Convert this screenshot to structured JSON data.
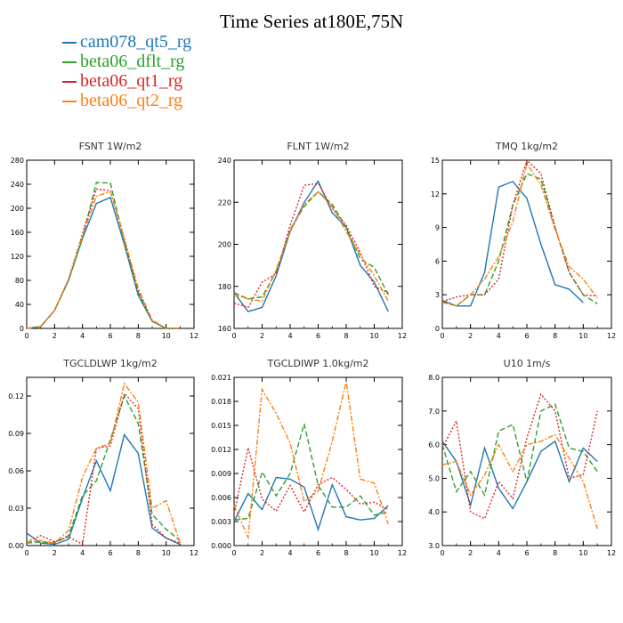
{
  "title": "Time Series at180E,75N",
  "legend": [
    {
      "label": "cam078_qt5_rg",
      "color": "#1f77b4"
    },
    {
      "label": "beta06_dflt_rg",
      "color": "#2ca02c"
    },
    {
      "label": "beta06_qt1_rg",
      "color": "#d62728"
    },
    {
      "label": "beta06_qt2_rg",
      "color": "#ff7f0e"
    }
  ],
  "chart_data": [
    {
      "type": "line",
      "title": "FSNT   1W/m2",
      "x": [
        0,
        1,
        2,
        3,
        4,
        5,
        6,
        7,
        8,
        9,
        10,
        11
      ],
      "xlim": [
        0,
        12
      ],
      "xticks": [
        "0",
        "2",
        "4",
        "6",
        "8",
        "10",
        "12"
      ],
      "ylim": [
        0,
        280
      ],
      "yticks": [
        "0",
        "40",
        "80",
        "120",
        "160",
        "200",
        "240",
        "280"
      ],
      "series": [
        {
          "name": "cam078_qt5_rg",
          "values": [
            0,
            3,
            30,
            80,
            150,
            208,
            218,
            140,
            55,
            12,
            0,
            0
          ]
        },
        {
          "name": "beta06_dflt_rg",
          "values": [
            0,
            3,
            30,
            80,
            150,
            243,
            242,
            145,
            60,
            12,
            0,
            0
          ]
        },
        {
          "name": "beta06_qt1_rg",
          "values": [
            0,
            3,
            30,
            82,
            158,
            232,
            229,
            148,
            63,
            13,
            0,
            0
          ]
        },
        {
          "name": "beta06_qt2_rg",
          "values": [
            0,
            3,
            30,
            82,
            155,
            220,
            228,
            150,
            67,
            14,
            0,
            0
          ]
        }
      ]
    },
    {
      "type": "line",
      "title": "FLNT   1W/m2",
      "x": [
        0,
        1,
        2,
        3,
        4,
        5,
        6,
        7,
        8,
        9,
        10,
        11
      ],
      "xlim": [
        0,
        12
      ],
      "xticks": [
        "0",
        "2",
        "4",
        "6",
        "8",
        "10",
        "12"
      ],
      "ylim": [
        160,
        240
      ],
      "yticks": [
        "160",
        "180",
        "200",
        "220",
        "240"
      ],
      "series": [
        {
          "name": "cam078_qt5_rg",
          "values": [
            177,
            168,
            170,
            185,
            206,
            220,
            230,
            215,
            208,
            190,
            182,
            168
          ]
        },
        {
          "name": "beta06_dflt_rg",
          "values": [
            177,
            174,
            175,
            187,
            207,
            218,
            225,
            219,
            208,
            193,
            189,
            176
          ]
        },
        {
          "name": "beta06_qt1_rg",
          "values": [
            172,
            170,
            182,
            186,
            209,
            228,
            229,
            217,
            209,
            196,
            180,
            177
          ]
        },
        {
          "name": "beta06_qt2_rg",
          "values": [
            176,
            174,
            173,
            188,
            206,
            219,
            225,
            218,
            206,
            195,
            185,
            173
          ]
        }
      ]
    },
    {
      "type": "line",
      "title": "TMQ   1kg/m2",
      "x": [
        0,
        1,
        2,
        3,
        4,
        5,
        6,
        7,
        8,
        9,
        10,
        11
      ],
      "xlim": [
        0,
        12
      ],
      "xticks": [
        "0",
        "2",
        "4",
        "6",
        "8",
        "10",
        "12"
      ],
      "ylim": [
        0,
        15
      ],
      "yticks": [
        "0",
        "3",
        "6",
        "9",
        "12",
        "15"
      ],
      "series": [
        {
          "name": "cam078_qt5_rg",
          "values": [
            2.5,
            2.0,
            2.0,
            5.0,
            12.6,
            13.1,
            11.6,
            7.5,
            3.9,
            3.5,
            2.3,
            null
          ]
        },
        {
          "name": "beta06_dflt_rg",
          "values": [
            2.4,
            2.0,
            3.0,
            3.0,
            6.0,
            11.0,
            13.8,
            13.3,
            9.0,
            5.0,
            3.0,
            2.2
          ]
        },
        {
          "name": "beta06_qt1_rg",
          "values": [
            2.4,
            2.8,
            3.0,
            3.0,
            4.4,
            11.0,
            15.0,
            13.8,
            9.0,
            5.0,
            3.0,
            2.9
          ]
        },
        {
          "name": "beta06_qt2_rg",
          "values": [
            2.3,
            2.0,
            3.0,
            4.4,
            6.4,
            9.5,
            14.7,
            12.8,
            8.8,
            5.5,
            4.4,
            2.7
          ]
        }
      ]
    },
    {
      "type": "line",
      "title": "TGCLDLWP   1kg/m2",
      "x": [
        0,
        1,
        2,
        3,
        4,
        5,
        6,
        7,
        8,
        9,
        10,
        11
      ],
      "xlim": [
        0,
        12
      ],
      "xticks": [
        "0",
        "2",
        "4",
        "6",
        "8",
        "10",
        "12"
      ],
      "ylim": [
        0,
        0.135
      ],
      "yticks": [
        "0.00",
        "0.03",
        "0.06",
        "0.09",
        "0.12"
      ],
      "series": [
        {
          "name": "cam078_qt5_rg",
          "values": [
            0.01,
            0.002,
            0.001,
            0.005,
            0.038,
            0.068,
            0.044,
            0.089,
            0.074,
            0.014,
            0.006,
            0.001
          ]
        },
        {
          "name": "beta06_dflt_rg",
          "values": [
            0.002,
            0.003,
            0.002,
            0.008,
            0.04,
            0.052,
            0.085,
            0.12,
            0.098,
            0.025,
            0.013,
            0.004
          ]
        },
        {
          "name": "beta06_qt1_rg",
          "values": [
            0.003,
            0.008,
            0.003,
            0.007,
            0.001,
            0.078,
            0.08,
            0.122,
            0.11,
            0.017,
            0.006,
            0.002
          ]
        },
        {
          "name": "beta06_qt2_rg",
          "values": [
            0.003,
            0.004,
            0.002,
            0.012,
            0.055,
            0.078,
            0.082,
            0.13,
            0.115,
            0.03,
            0.036,
            0.002
          ]
        }
      ]
    },
    {
      "type": "line",
      "title": "TGCLDIWP   1.0kg/m2",
      "x": [
        0,
        1,
        2,
        3,
        4,
        5,
        6,
        7,
        8,
        9,
        10,
        11
      ],
      "xlim": [
        0,
        12
      ],
      "xticks": [
        "0",
        "2",
        "4",
        "6",
        "8",
        "10",
        "12"
      ],
      "ylim": [
        0,
        0.021
      ],
      "yticks": [
        "0.000",
        "0.003",
        "0.006",
        "0.009",
        "0.012",
        "0.015",
        "0.018",
        "0.021"
      ],
      "series": [
        {
          "name": "cam078_qt5_rg",
          "values": [
            0.003,
            0.0065,
            0.0045,
            0.0085,
            0.0083,
            0.0073,
            0.002,
            0.0076,
            0.0036,
            0.0032,
            0.0034,
            0.005
          ]
        },
        {
          "name": "beta06_dflt_rg",
          "values": [
            0.0032,
            0.0034,
            0.0092,
            0.0062,
            0.009,
            0.0152,
            0.0075,
            0.0048,
            0.0048,
            0.0062,
            0.0038,
            0.0042
          ]
        },
        {
          "name": "beta06_qt1_rg",
          "values": [
            0.004,
            0.0122,
            0.0058,
            0.0043,
            0.0075,
            0.0042,
            0.0076,
            0.0085,
            0.007,
            0.0052,
            0.0054,
            0.0045
          ]
        },
        {
          "name": "beta06_qt2_rg",
          "values": [
            0.005,
            0.001,
            0.0195,
            0.0165,
            0.0128,
            0.0055,
            0.0068,
            0.013,
            0.0205,
            0.0083,
            0.0078,
            0.0027
          ]
        }
      ]
    },
    {
      "type": "line",
      "title": "U10   1m/s",
      "x": [
        0,
        1,
        2,
        3,
        4,
        5,
        6,
        7,
        8,
        9,
        10,
        11
      ],
      "xlim": [
        0,
        12
      ],
      "xticks": [
        "0",
        "2",
        "4",
        "6",
        "8",
        "10",
        "12"
      ],
      "ylim": [
        3.0,
        8.0
      ],
      "yticks": [
        "3.0",
        "4.0",
        "5.0",
        "6.0",
        "7.0",
        "8.0"
      ],
      "series": [
        {
          "name": "cam078_qt5_rg",
          "values": [
            6.1,
            5.5,
            4.2,
            5.9,
            4.7,
            4.1,
            4.9,
            5.8,
            6.1,
            4.9,
            5.9,
            5.5
          ]
        },
        {
          "name": "beta06_dflt_rg",
          "values": [
            6.0,
            4.6,
            5.2,
            4.5,
            6.4,
            6.6,
            4.9,
            7.0,
            7.2,
            5.9,
            5.8,
            5.2
          ]
        },
        {
          "name": "beta06_qt1_rg",
          "values": [
            5.9,
            6.7,
            4.0,
            3.8,
            4.9,
            4.4,
            6.2,
            7.5,
            7.0,
            5.0,
            5.1,
            7.0
          ]
        },
        {
          "name": "beta06_qt2_rg",
          "values": [
            5.4,
            5.5,
            4.5,
            5.1,
            6.0,
            5.2,
            6.0,
            6.1,
            6.3,
            5.6,
            4.9,
            3.5
          ]
        }
      ]
    }
  ]
}
